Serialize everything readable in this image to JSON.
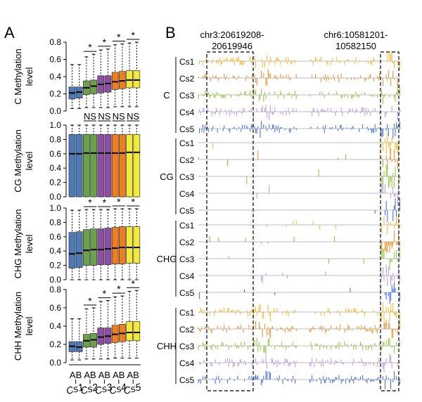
{
  "panel_a": {
    "label": "A",
    "chart_data": [
      {
        "type": "box",
        "ylabel": "C Methylation level",
        "ylim": [
          0,
          0.8
        ],
        "yticks": [
          "0.0",
          "0.2",
          "0.4",
          "0.6",
          "0.8"
        ],
        "significance": [
          "*",
          "*",
          "*",
          "*"
        ],
        "boxes": [
          {
            "q1": 0.14,
            "median": 0.21,
            "q3": 0.28,
            "wlo": 0.03,
            "whi": 0.54
          },
          {
            "q1": 0.15,
            "median": 0.22,
            "q3": 0.28,
            "wlo": 0.03,
            "whi": 0.54
          },
          {
            "q1": 0.19,
            "median": 0.27,
            "q3": 0.35,
            "wlo": 0.04,
            "whi": 0.63
          },
          {
            "q1": 0.2,
            "median": 0.29,
            "q3": 0.36,
            "wlo": 0.04,
            "whi": 0.66
          },
          {
            "q1": 0.21,
            "median": 0.31,
            "q3": 0.41,
            "wlo": 0.04,
            "whi": 0.71
          },
          {
            "q1": 0.22,
            "median": 0.32,
            "q3": 0.41,
            "wlo": 0.04,
            "whi": 0.72
          },
          {
            "q1": 0.25,
            "median": 0.34,
            "q3": 0.45,
            "wlo": 0.05,
            "whi": 0.77
          },
          {
            "q1": 0.26,
            "median": 0.35,
            "q3": 0.46,
            "wlo": 0.05,
            "whi": 0.78
          },
          {
            "q1": 0.27,
            "median": 0.36,
            "q3": 0.47,
            "wlo": 0.05,
            "whi": 0.79
          },
          {
            "q1": 0.27,
            "median": 0.36,
            "q3": 0.47,
            "wlo": 0.05,
            "whi": 0.8
          }
        ]
      },
      {
        "type": "box",
        "ylabel": "CG Methylation level",
        "ylim": [
          0,
          1.0
        ],
        "yticks": [
          "0.0",
          "0.2",
          "0.4",
          "0.6",
          "0.8",
          "1.0"
        ],
        "significance": [
          "NS",
          "NS",
          "NS",
          "NS"
        ],
        "boxes": [
          {
            "q1": 0.0,
            "median": 0.6,
            "q3": 0.87,
            "wlo": 0.0,
            "whi": 1.0
          },
          {
            "q1": 0.0,
            "median": 0.6,
            "q3": 0.87,
            "wlo": 0.0,
            "whi": 1.0
          },
          {
            "q1": 0.0,
            "median": 0.61,
            "q3": 0.87,
            "wlo": 0.0,
            "whi": 1.0
          },
          {
            "q1": 0.0,
            "median": 0.61,
            "q3": 0.87,
            "wlo": 0.0,
            "whi": 1.0
          },
          {
            "q1": 0.0,
            "median": 0.61,
            "q3": 0.87,
            "wlo": 0.0,
            "whi": 1.0
          },
          {
            "q1": 0.0,
            "median": 0.61,
            "q3": 0.87,
            "wlo": 0.0,
            "whi": 1.0
          },
          {
            "q1": 0.0,
            "median": 0.61,
            "q3": 0.87,
            "wlo": 0.0,
            "whi": 1.0
          },
          {
            "q1": 0.0,
            "median": 0.61,
            "q3": 0.87,
            "wlo": 0.0,
            "whi": 1.0
          },
          {
            "q1": 0.0,
            "median": 0.62,
            "q3": 0.87,
            "wlo": 0.0,
            "whi": 1.0
          },
          {
            "q1": 0.0,
            "median": 0.62,
            "q3": 0.87,
            "wlo": 0.0,
            "whi": 1.0
          }
        ]
      },
      {
        "type": "box",
        "ylabel": "CHG Methylation level",
        "ylim": [
          0,
          1.0
        ],
        "yticks": [
          "0.0",
          "0.2",
          "0.4",
          "0.6",
          "0.8",
          "1.0"
        ],
        "significance": [
          "*",
          "*",
          "*",
          "*"
        ],
        "boxes": [
          {
            "q1": 0.16,
            "median": 0.36,
            "q3": 0.66,
            "wlo": 0.0,
            "whi": 0.97
          },
          {
            "q1": 0.17,
            "median": 0.37,
            "q3": 0.67,
            "wlo": 0.0,
            "whi": 0.97
          },
          {
            "q1": 0.2,
            "median": 0.41,
            "q3": 0.7,
            "wlo": 0.0,
            "whi": 0.98
          },
          {
            "q1": 0.2,
            "median": 0.42,
            "q3": 0.71,
            "wlo": 0.0,
            "whi": 0.98
          },
          {
            "q1": 0.21,
            "median": 0.42,
            "q3": 0.71,
            "wlo": 0.0,
            "whi": 0.98
          },
          {
            "q1": 0.21,
            "median": 0.43,
            "q3": 0.72,
            "wlo": 0.0,
            "whi": 0.98
          },
          {
            "q1": 0.22,
            "median": 0.44,
            "q3": 0.73,
            "wlo": 0.0,
            "whi": 0.99
          },
          {
            "q1": 0.22,
            "median": 0.45,
            "q3": 0.74,
            "wlo": 0.0,
            "whi": 0.99
          },
          {
            "q1": 0.23,
            "median": 0.45,
            "q3": 0.74,
            "wlo": 0.0,
            "whi": 0.99
          },
          {
            "q1": 0.23,
            "median": 0.45,
            "q3": 0.74,
            "wlo": 0.0,
            "whi": 0.99
          }
        ]
      },
      {
        "type": "box",
        "ylabel": "CHH Methylation level",
        "ylim": [
          0,
          0.8
        ],
        "yticks": [
          "0.0",
          "0.2",
          "0.4",
          "0.6",
          "0.8"
        ],
        "significance": [
          "*",
          "*",
          "*",
          "*"
        ],
        "boxes": [
          {
            "q1": 0.12,
            "median": 0.18,
            "q3": 0.23,
            "wlo": 0.03,
            "whi": 0.48
          },
          {
            "q1": 0.12,
            "median": 0.17,
            "q3": 0.23,
            "wlo": 0.03,
            "whi": 0.48
          },
          {
            "q1": 0.17,
            "median": 0.24,
            "q3": 0.31,
            "wlo": 0.04,
            "whi": 0.59
          },
          {
            "q1": 0.17,
            "median": 0.25,
            "q3": 0.32,
            "wlo": 0.04,
            "whi": 0.6
          },
          {
            "q1": 0.2,
            "median": 0.28,
            "q3": 0.38,
            "wlo": 0.04,
            "whi": 0.67
          },
          {
            "q1": 0.21,
            "median": 0.29,
            "q3": 0.38,
            "wlo": 0.04,
            "whi": 0.68
          },
          {
            "q1": 0.22,
            "median": 0.31,
            "q3": 0.41,
            "wlo": 0.05,
            "whi": 0.72
          },
          {
            "q1": 0.23,
            "median": 0.32,
            "q3": 0.42,
            "wlo": 0.05,
            "whi": 0.73
          },
          {
            "q1": 0.24,
            "median": 0.33,
            "q3": 0.45,
            "wlo": 0.05,
            "whi": 0.78
          },
          {
            "q1": 0.24,
            "median": 0.33,
            "q3": 0.45,
            "wlo": 0.05,
            "whi": 0.79
          }
        ]
      }
    ],
    "ab_labels": [
      "AB",
      "AB",
      "AB",
      "AB",
      "AB"
    ],
    "groups": [
      "Cs1",
      "Cs2",
      "Cs3",
      "Cs4",
      "Cs5"
    ],
    "colors": [
      "#4f7ab8",
      "#6aa14a",
      "#8e4ea3",
      "#ef7e1f",
      "#f3ea3a"
    ]
  },
  "panel_b": {
    "label": "B",
    "regions": [
      {
        "line1": "chr3:20619208-",
        "line2": "20619946"
      },
      {
        "line1": "chr6:10581201-",
        "line2": "10582150"
      }
    ],
    "groups": [
      {
        "name": "C",
        "samples": [
          "Cs1",
          "Cs2",
          "Cs3",
          "Cs4",
          "Cs5"
        ]
      },
      {
        "name": "CG",
        "samples": [
          "Cs1",
          "Cs2",
          "Cs3",
          "Cs4",
          "Cs5"
        ]
      },
      {
        "name": "CHG",
        "samples": [
          "Cs1",
          "Cs2",
          "Cs3",
          "Cs4",
          "Cs5"
        ]
      },
      {
        "name": "CHH",
        "samples": [
          "Cs1",
          "Cs2",
          "Cs3",
          "Cs4",
          "Cs5"
        ]
      }
    ],
    "track_colors": [
      "#f2b829",
      "#ea8a23",
      "#8cc43a",
      "#b894e6",
      "#3a67dc"
    ]
  }
}
